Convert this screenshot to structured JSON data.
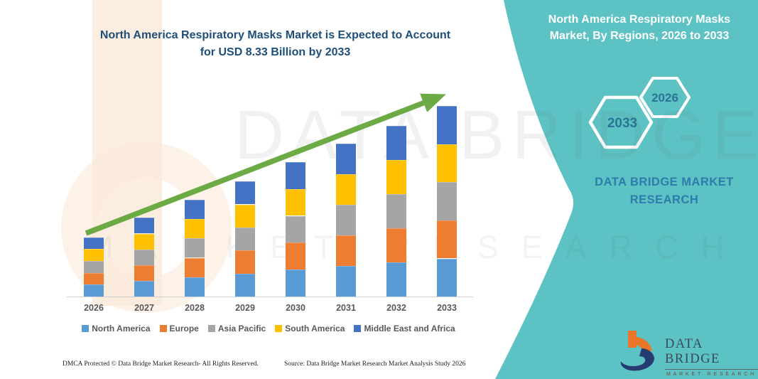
{
  "main_title_lines": [
    "North America Respiratory Masks Market is Expected to Account",
    "for USD 8.33 Billion by 2033"
  ],
  "panel": {
    "background_color": "#5CC2C4",
    "title_lines": [
      "North America Respiratory Masks",
      "Market, By Regions, 2026 to 2033"
    ],
    "hex_large_year": "2033",
    "hex_small_year": "2026",
    "brand_lines": [
      "DATA BRIDGE MARKET",
      "RESEARCH"
    ]
  },
  "logo": {
    "name": "DATA BRIDGE",
    "subtitle": "MARKET RESEARCH"
  },
  "watermark": {
    "row1": "DATA BRIDGE",
    "row2": "MARKET RESEARCH"
  },
  "footer": {
    "left": "DMCA Protected © Data Bridge Market Research-  All Rights Reserved.",
    "right": "Source: Data Bridge Market Research  Market Analysis Study 2026"
  },
  "colors": {
    "title_blue": "#1F4E79",
    "teal_panel": "#5CC2C4",
    "trend_arrow_green": "#6BAA44",
    "axis_text": "#595959",
    "hex_year_text": "#2a7496"
  },
  "chart_data": {
    "type": "bar",
    "stacked": true,
    "title": "North America Respiratory Masks Market is Expected to Account for USD 8.33 Billion by 2033",
    "unit": "USD Billion",
    "categories": [
      "2026",
      "2027",
      "2028",
      "2029",
      "2030",
      "2031",
      "2032",
      "2033"
    ],
    "series": [
      {
        "name": "North America",
        "color": "#5B9BD5",
        "values": [
          0.52,
          0.69,
          0.85,
          1.01,
          1.18,
          1.34,
          1.5,
          1.67
        ]
      },
      {
        "name": "Europe",
        "color": "#ED7D31",
        "values": [
          0.52,
          0.69,
          0.85,
          1.01,
          1.18,
          1.34,
          1.5,
          1.67
        ]
      },
      {
        "name": "Asia Pacific",
        "color": "#A5A5A5",
        "values": [
          0.52,
          0.69,
          0.85,
          1.01,
          1.18,
          1.34,
          1.5,
          1.67
        ]
      },
      {
        "name": "South America",
        "color": "#FFC000",
        "values": [
          0.52,
          0.69,
          0.85,
          1.01,
          1.18,
          1.34,
          1.5,
          1.67
        ]
      },
      {
        "name": "Middle East and Africa",
        "color": "#4472C4",
        "values": [
          0.52,
          0.69,
          0.85,
          1.01,
          1.18,
          1.34,
          1.5,
          1.67
        ]
      }
    ],
    "totals_usd_billion": [
      2.62,
      3.44,
      4.25,
      5.07,
      5.88,
      6.7,
      7.51,
      8.33
    ],
    "ylim": [
      0,
      8.33
    ],
    "annotation": "USD 8.33 Billion by 2033",
    "gridlines": false,
    "trend_arrow": true,
    "legend_position": "bottom"
  }
}
